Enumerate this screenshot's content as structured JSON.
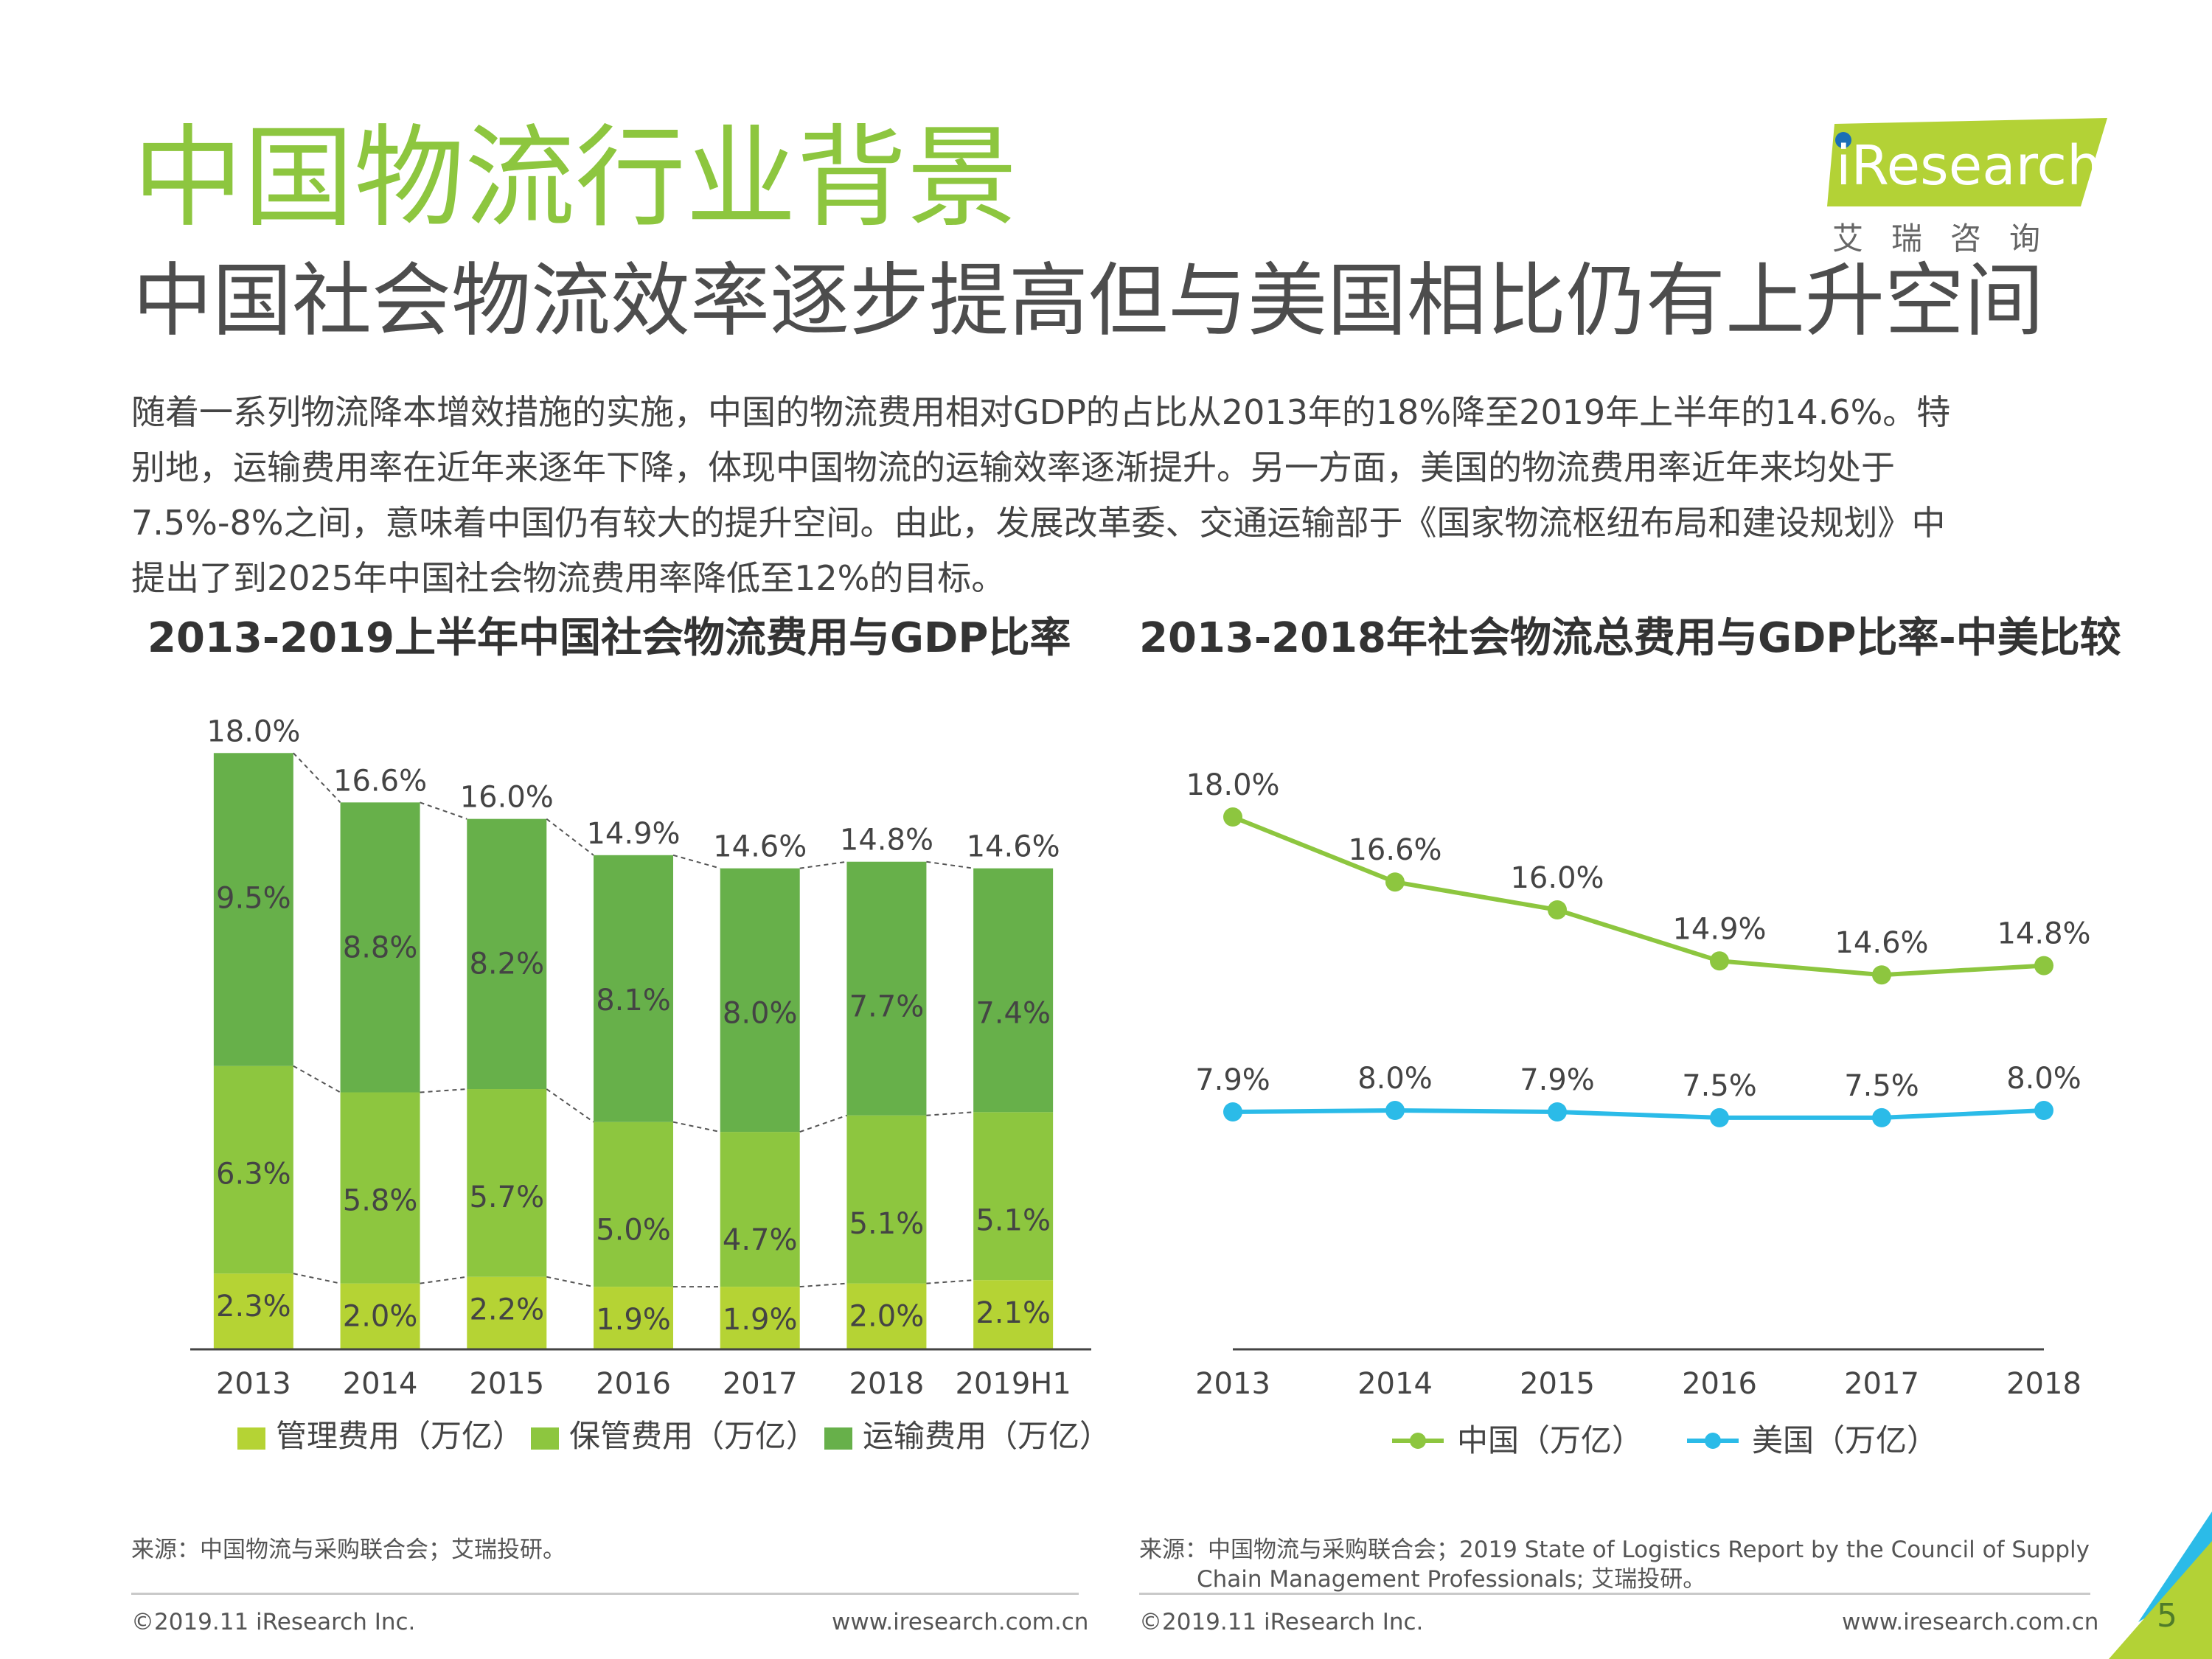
{
  "header": {
    "title": "中国物流行业背景",
    "subtitle": "中国社会物流效率逐步提高但与美国相比仍有上升空间",
    "logo_word": "iResearch",
    "logo_cn": "艾瑞咨询"
  },
  "intro_lines": [
    "随着一系列物流降本增效措施的实施，中国的物流费用相对GDP的占比从2013年的18%降至2019年上半年的14.6%。特",
    "别地，运输费用率在近年来逐年下降，体现中国物流的运输效率逐渐提升。另一方面，美国的物流费用率近年来均处于",
    "7.5%-8%之间，意味着中国仍有较大的提升空间。由此，发展改革委、交通运输部于《国家物流枢纽布局和建设规划》中",
    "提出了到2025年中国社会物流费用率降低至12%的目标。"
  ],
  "colors": {
    "title_green": "#8dc63f",
    "mgmt": "#b5d334",
    "storage": "#8dc63f",
    "transport": "#67b04a",
    "china": "#8dc63f",
    "usa": "#2bbbe8",
    "logo_bg": "#b3d236"
  },
  "chart_data": [
    {
      "type": "bar",
      "title": "2013-2019上半年中国社会物流费用与GDP比率",
      "stacked": true,
      "categories": [
        "2013",
        "2014",
        "2015",
        "2016",
        "2017",
        "2018",
        "2019H1"
      ],
      "series": [
        {
          "name": "管理费用（万亿）",
          "values": [
            2.3,
            2.0,
            2.2,
            1.9,
            1.9,
            2.0,
            2.1
          ],
          "labels": [
            "2.3%",
            "2.0%",
            "2.2%",
            "1.9%",
            "1.9%",
            "2.0%",
            "2.1%"
          ]
        },
        {
          "name": "保管费用（万亿）",
          "values": [
            6.3,
            5.8,
            5.7,
            5.0,
            4.7,
            5.1,
            5.1
          ],
          "labels": [
            "6.3%",
            "5.8%",
            "5.7%",
            "5.0%",
            "4.7%",
            "5.1%",
            "5.1%"
          ]
        },
        {
          "name": "运输费用（万亿）",
          "values": [
            9.5,
            8.8,
            8.2,
            8.1,
            8.0,
            7.7,
            7.4
          ],
          "labels": [
            "9.5%",
            "8.8%",
            "8.2%",
            "8.1%",
            "8.0%",
            "7.7%",
            "7.4%"
          ]
        }
      ],
      "totals": [
        18.0,
        16.6,
        16.0,
        14.9,
        14.6,
        14.8,
        14.6
      ],
      "total_labels": [
        "18.0%",
        "16.6%",
        "16.0%",
        "14.9%",
        "14.6%",
        "14.8%",
        "14.6%"
      ],
      "ylim": [
        0,
        18.8
      ],
      "legend_position": "bottom",
      "source": "来源：中国物流与采购联合会；艾瑞投研。"
    },
    {
      "type": "line",
      "title": "2013-2018年社会物流总费用与GDP比率-中美比较",
      "x": [
        "2013",
        "2014",
        "2015",
        "2016",
        "2017",
        "2018"
      ],
      "series": [
        {
          "name": "中国（万亿）",
          "values": [
            18.0,
            16.6,
            16.0,
            14.9,
            14.6,
            14.8
          ],
          "labels": [
            "18.0%",
            "16.6%",
            "16.0%",
            "14.9%",
            "14.6%",
            "14.8%"
          ]
        },
        {
          "name": "美国（万亿）",
          "values": [
            7.9,
            8.0,
            7.9,
            7.5,
            7.5,
            8.0
          ],
          "labels": [
            "7.9%",
            "8.0%",
            "7.9%",
            "7.5%",
            "7.5%",
            "8.0%"
          ]
        }
      ],
      "legend_position": "bottom",
      "source_lines": [
        "来源：中国物流与采购联合会；2019 State of Logistics Report by the Council of Supply",
        "Chain Management Professionals; 艾瑞投研。"
      ]
    }
  ],
  "footer": {
    "copyright": "©2019.11 iResearch Inc.",
    "website": "www.iresearch.com.cn",
    "page_number": "5"
  }
}
